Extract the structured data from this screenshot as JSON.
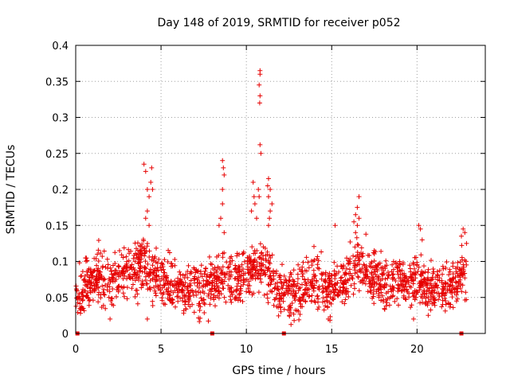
{
  "chart_data": {
    "type": "scatter",
    "title": "Day 148 of 2019, SRMTID for receiver p052",
    "xlabel": "GPS time / hours",
    "ylabel": "SRMTID / TECUs",
    "xlim": [
      0,
      24
    ],
    "ylim": [
      0,
      0.4
    ],
    "xticks": [
      0,
      5,
      10,
      15,
      20
    ],
    "xtick_labels": [
      "0",
      "5",
      "10",
      "15",
      "20"
    ],
    "yticks": [
      0,
      0.05,
      0.1,
      0.15,
      0.2,
      0.25,
      0.3,
      0.35,
      0.4
    ],
    "ytick_labels": [
      "0",
      "0.05",
      "0.1",
      "0.15",
      "0.2",
      "0.25",
      "0.3",
      "0.35",
      "0.4"
    ],
    "grid": true,
    "marker": "plus",
    "series_color": "#e60000",
    "baseline_marks_x": [
      0.1,
      8.0,
      12.2,
      22.6
    ],
    "background_band": {
      "segments": [
        [
          0.0,
          0.055
        ],
        [
          0.5,
          0.06
        ],
        [
          1.0,
          0.075
        ],
        [
          1.5,
          0.08
        ],
        [
          2.0,
          0.07
        ],
        [
          2.5,
          0.08
        ],
        [
          3.0,
          0.09
        ],
        [
          3.5,
          0.085
        ],
        [
          4.0,
          0.1
        ],
        [
          4.5,
          0.085
        ],
        [
          5.0,
          0.075
        ],
        [
          5.5,
          0.07
        ],
        [
          6.0,
          0.065
        ],
        [
          6.5,
          0.06
        ],
        [
          7.0,
          0.06
        ],
        [
          7.5,
          0.06
        ],
        [
          8.0,
          0.065
        ],
        [
          8.5,
          0.075
        ],
        [
          9.0,
          0.075
        ],
        [
          9.5,
          0.07
        ],
        [
          10.0,
          0.085
        ],
        [
          10.5,
          0.09
        ],
        [
          11.0,
          0.095
        ],
        [
          11.5,
          0.075
        ],
        [
          12.0,
          0.06
        ],
        [
          12.5,
          0.055
        ],
        [
          13.0,
          0.06
        ],
        [
          13.5,
          0.065
        ],
        [
          14.0,
          0.07
        ],
        [
          14.5,
          0.065
        ],
        [
          15.0,
          0.06
        ],
        [
          15.5,
          0.07
        ],
        [
          16.0,
          0.075
        ],
        [
          16.5,
          0.095
        ],
        [
          17.0,
          0.085
        ],
        [
          17.5,
          0.075
        ],
        [
          18.0,
          0.07
        ],
        [
          18.5,
          0.07
        ],
        [
          19.0,
          0.075
        ],
        [
          19.5,
          0.07
        ],
        [
          20.0,
          0.07
        ],
        [
          20.5,
          0.065
        ],
        [
          21.0,
          0.065
        ],
        [
          21.5,
          0.06
        ],
        [
          22.0,
          0.065
        ],
        [
          22.5,
          0.08
        ],
        [
          22.9,
          0.09
        ]
      ],
      "spread": 0.06,
      "density_per_hour": 80
    },
    "highlight_points": [
      [
        4.0,
        0.235
      ],
      [
        4.1,
        0.225
      ],
      [
        4.2,
        0.2
      ],
      [
        4.3,
        0.19
      ],
      [
        4.45,
        0.23
      ],
      [
        4.4,
        0.21
      ],
      [
        4.5,
        0.2
      ],
      [
        4.2,
        0.17
      ],
      [
        4.1,
        0.16
      ],
      [
        4.3,
        0.15
      ],
      [
        8.6,
        0.24
      ],
      [
        8.65,
        0.23
      ],
      [
        8.7,
        0.22
      ],
      [
        8.6,
        0.2
      ],
      [
        8.6,
        0.18
      ],
      [
        8.5,
        0.16
      ],
      [
        8.4,
        0.15
      ],
      [
        8.7,
        0.14
      ],
      [
        10.4,
        0.21
      ],
      [
        10.45,
        0.19
      ],
      [
        10.5,
        0.18
      ],
      [
        10.3,
        0.17
      ],
      [
        10.6,
        0.16
      ],
      [
        10.7,
        0.2
      ],
      [
        10.75,
        0.19
      ],
      [
        10.8,
        0.365
      ],
      [
        10.8,
        0.36
      ],
      [
        10.75,
        0.345
      ],
      [
        10.8,
        0.33
      ],
      [
        10.78,
        0.32
      ],
      [
        10.8,
        0.262
      ],
      [
        10.85,
        0.25
      ],
      [
        11.3,
        0.215
      ],
      [
        11.25,
        0.205
      ],
      [
        11.4,
        0.2
      ],
      [
        11.3,
        0.19
      ],
      [
        11.5,
        0.18
      ],
      [
        11.4,
        0.17
      ],
      [
        11.35,
        0.16
      ],
      [
        11.3,
        0.15
      ],
      [
        16.6,
        0.19
      ],
      [
        16.5,
        0.175
      ],
      [
        16.4,
        0.165
      ],
      [
        16.6,
        0.16
      ],
      [
        16.3,
        0.155
      ],
      [
        16.5,
        0.15
      ],
      [
        16.4,
        0.14
      ],
      [
        15.2,
        0.15
      ],
      [
        20.1,
        0.15
      ],
      [
        20.2,
        0.145
      ],
      [
        20.3,
        0.13
      ],
      [
        22.7,
        0.145
      ],
      [
        22.8,
        0.14
      ],
      [
        22.6,
        0.135
      ],
      [
        22.9,
        0.125
      ],
      [
        4.2,
        0.02
      ],
      [
        14.8,
        0.02
      ],
      [
        14.9,
        0.018
      ],
      [
        12.8,
        0.018
      ],
      [
        19.8,
        0.02
      ]
    ]
  }
}
